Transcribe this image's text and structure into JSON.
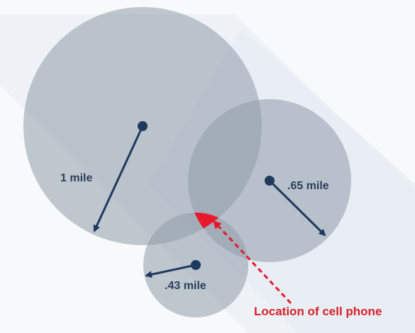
{
  "labels": {
    "big_radius": "1 mile",
    "right_radius": ".65 mile",
    "small_radius": ".43 mile",
    "location": "Location of cell phone"
  },
  "colors": {
    "circle_fill": "#8f9caa",
    "arrow": "#1f3a5f",
    "highlight": "#e8192c",
    "text_dark": "#2b3f5a",
    "text_red": "#d8202c",
    "background_diamond": "#e9eff5"
  }
}
